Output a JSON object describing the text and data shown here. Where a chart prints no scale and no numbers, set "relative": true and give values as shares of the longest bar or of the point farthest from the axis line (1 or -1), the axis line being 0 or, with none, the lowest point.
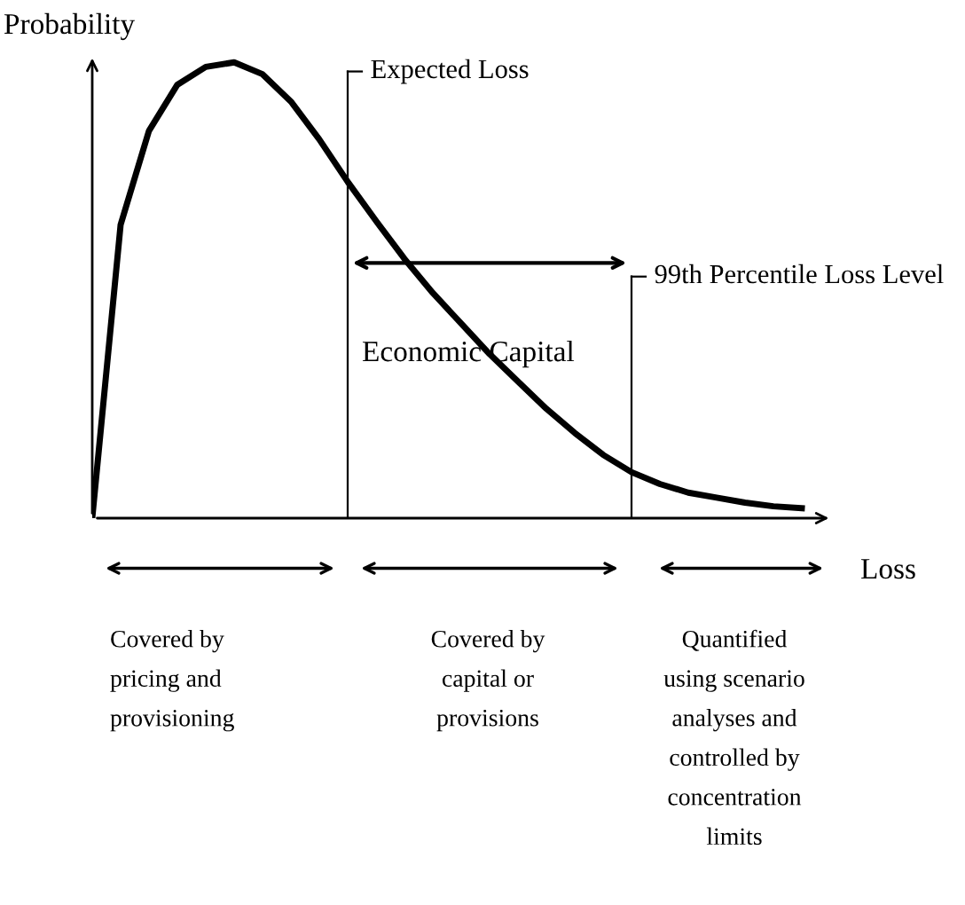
{
  "chart_data": {
    "type": "line",
    "relative": true,
    "ylabel": "Probability",
    "xlabel": "Loss",
    "categories": [
      null,
      null,
      null,
      null,
      null,
      null,
      null,
      null,
      null,
      null,
      null,
      null,
      null,
      null,
      null,
      null,
      null,
      null,
      null,
      null,
      null,
      null,
      null,
      null,
      null,
      null
    ],
    "series": [
      {
        "color": "#000000",
        "values": [
          0,
          0.644,
          0.85,
          0.951,
          0.99,
          1.0,
          0.974,
          0.914,
          0.831,
          0.738,
          0.652,
          0.569,
          0.494,
          0.427,
          0.36,
          0.3,
          0.24,
          0.187,
          0.139,
          0.101,
          0.075,
          0.056,
          0.045,
          0.034,
          0.026,
          0.022
        ]
      }
    ],
    "annotations": [
      "Expected Loss",
      "99th Percentile Loss Level",
      "Economic Capital",
      "Covered by\npricing and\nprovisioning",
      "Covered by\ncapital or\nprovisions",
      "Quantified\nusing scenario\nanalyses and\ncontrolled by\nconcentration\nlimits"
    ],
    "legend": false,
    "marker": "none",
    "line_style": "solid"
  }
}
